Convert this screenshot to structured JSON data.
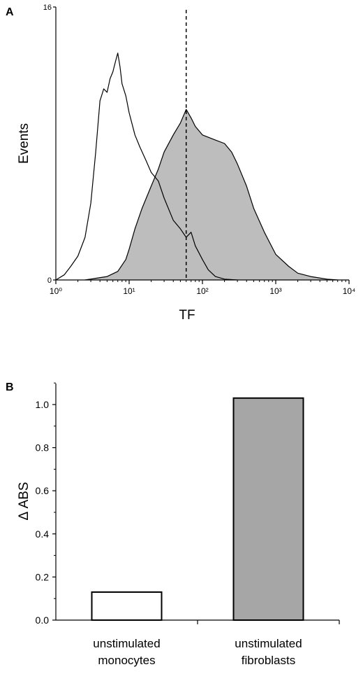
{
  "chart_data": [
    {
      "type": "area",
      "panel_label": "A",
      "xlabel": "TF",
      "ylabel": "Events",
      "x_scale": "log",
      "xlim": [
        1,
        10000
      ],
      "ylim": [
        0,
        16
      ],
      "x_tick_labels": [
        "10⁰",
        "10¹",
        "10²",
        "10³",
        "10⁴"
      ],
      "x_tick_values": [
        1,
        10,
        100,
        1000,
        10000
      ],
      "y_tick_labels": [
        "0",
        "16"
      ],
      "y_tick_values": [
        0,
        16
      ],
      "marker_line": {
        "x": 60,
        "style": "dashed"
      },
      "series": [
        {
          "fill": "none",
          "outline": "#000000",
          "points": [
            [
              1.0,
              0
            ],
            [
              1.3,
              0.3
            ],
            [
              1.6,
              0.8
            ],
            [
              2.0,
              1.4
            ],
            [
              2.5,
              2.5
            ],
            [
              3.0,
              4.5
            ],
            [
              3.5,
              7.5
            ],
            [
              4.0,
              10.5
            ],
            [
              4.5,
              11.2
            ],
            [
              5.0,
              11.0
            ],
            [
              5.5,
              11.8
            ],
            [
              6.0,
              12.2
            ],
            [
              6.5,
              12.8
            ],
            [
              7.0,
              13.3
            ],
            [
              7.5,
              12.5
            ],
            [
              8.0,
              11.5
            ],
            [
              9.0,
              10.8
            ],
            [
              10.0,
              9.8
            ],
            [
              12.0,
              8.5
            ],
            [
              14.0,
              7.8
            ],
            [
              17.0,
              7.0
            ],
            [
              20.0,
              6.3
            ],
            [
              25.0,
              5.8
            ],
            [
              30.0,
              4.8
            ],
            [
              40.0,
              3.5
            ],
            [
              50.0,
              3.0
            ],
            [
              60.0,
              2.5
            ],
            [
              70.0,
              2.8
            ],
            [
              80.0,
              2.0
            ],
            [
              100.0,
              1.2
            ],
            [
              120.0,
              0.6
            ],
            [
              150.0,
              0.2
            ],
            [
              200.0,
              0.05
            ],
            [
              300.0,
              0
            ]
          ]
        },
        {
          "fill": "#bdbdbd",
          "outline": "#000000",
          "points": [
            [
              2.5,
              0
            ],
            [
              3.5,
              0.1
            ],
            [
              5.0,
              0.2
            ],
            [
              7.0,
              0.5
            ],
            [
              9.0,
              1.2
            ],
            [
              10.0,
              1.8
            ],
            [
              12.0,
              3.0
            ],
            [
              15.0,
              4.2
            ],
            [
              20.0,
              5.5
            ],
            [
              25.0,
              6.5
            ],
            [
              30.0,
              7.5
            ],
            [
              40.0,
              8.5
            ],
            [
              50.0,
              9.2
            ],
            [
              60.0,
              10.0
            ],
            [
              70.0,
              9.5
            ],
            [
              80.0,
              9.0
            ],
            [
              100.0,
              8.5
            ],
            [
              150.0,
              8.2
            ],
            [
              200.0,
              8.0
            ],
            [
              250.0,
              7.5
            ],
            [
              300.0,
              6.8
            ],
            [
              400.0,
              5.5
            ],
            [
              500.0,
              4.2
            ],
            [
              700.0,
              2.8
            ],
            [
              1000.0,
              1.5
            ],
            [
              1500.0,
              0.8
            ],
            [
              2000.0,
              0.4
            ],
            [
              3000.0,
              0.2
            ],
            [
              5000.0,
              0.05
            ],
            [
              7000.0,
              0
            ]
          ]
        }
      ]
    },
    {
      "type": "bar",
      "panel_label": "B",
      "categories": [
        "unstimulated monocytes",
        "unstimulated fibroblasts"
      ],
      "category_lines": [
        [
          "unstimulated",
          "monocytes"
        ],
        [
          "unstimulated",
          "fibroblasts"
        ]
      ],
      "values": [
        0.13,
        1.03
      ],
      "bar_fills": [
        "#ffffff",
        "#a6a6a6"
      ],
      "ylabel": "Δ ABS",
      "ylim": [
        0,
        1.1
      ],
      "y_tick_values": [
        0.0,
        0.2,
        0.4,
        0.6,
        0.8,
        1.0
      ],
      "y_tick_labels": [
        "0.0",
        "0.2",
        "0.4",
        "0.6",
        "0.8",
        "1.0"
      ]
    }
  ]
}
